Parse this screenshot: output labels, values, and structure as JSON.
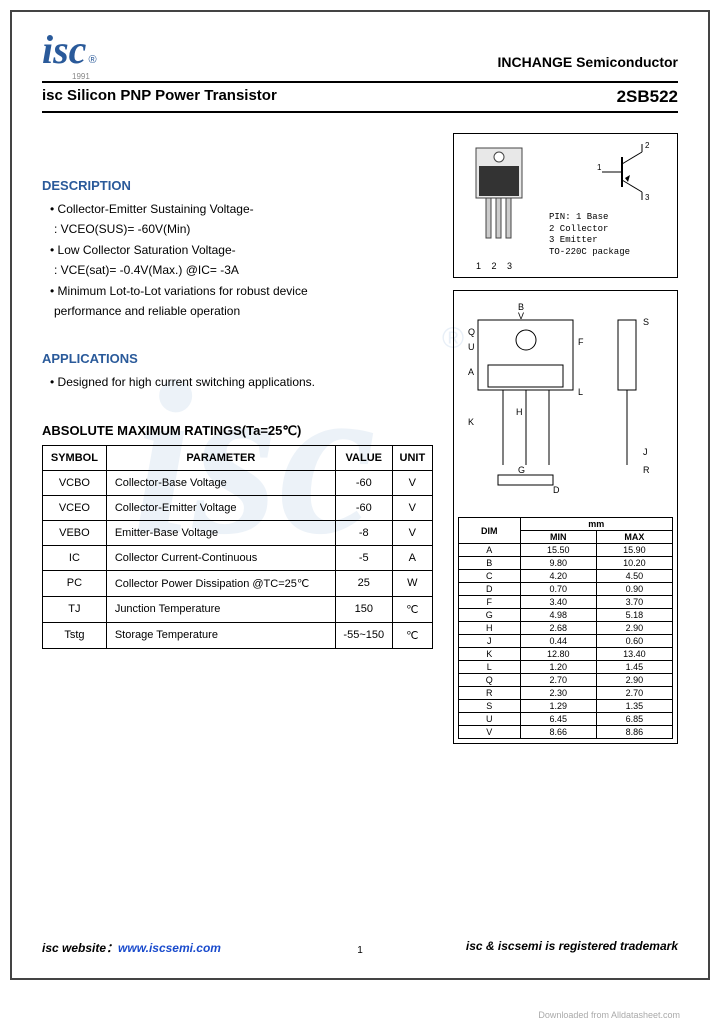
{
  "header": {
    "logo_text": "isc",
    "logo_year": "1991",
    "company": "INCHANGE Semiconductor"
  },
  "title": {
    "left": "isc Silicon PNP Power Transistor",
    "right": "2SB522"
  },
  "description": {
    "heading": "DESCRIPTION",
    "items": [
      "Collector-Emitter Sustaining Voltage-",
      ": VCEO(SUS)= -60V(Min)",
      "Low Collector Saturation Voltage-",
      ": VCE(sat)= -0.4V(Max.) @IC= -3A",
      "Minimum Lot-to-Lot variations for robust device",
      "performance and reliable operation"
    ]
  },
  "applications": {
    "heading": "APPLICATIONS",
    "item": "Designed for high current switching applications."
  },
  "ratings": {
    "heading": "ABSOLUTE MAXIMUM RATINGS(Ta=25℃)",
    "columns": [
      "SYMBOL",
      "PARAMETER",
      "VALUE",
      "UNIT"
    ],
    "rows": [
      [
        "VCBO",
        "Collector-Base Voltage",
        "-60",
        "V"
      ],
      [
        "VCEO",
        "Collector-Emitter Voltage",
        "-60",
        "V"
      ],
      [
        "VEBO",
        "Emitter-Base Voltage",
        "-8",
        "V"
      ],
      [
        "IC",
        "Collector Current-Continuous",
        "-5",
        "A"
      ],
      [
        "PC",
        "Collector Power Dissipation @TC=25℃",
        "25",
        "W"
      ],
      [
        "TJ",
        "Junction Temperature",
        "150",
        "℃"
      ],
      [
        "Tstg",
        "Storage Temperature",
        "-55~150",
        "℃"
      ]
    ]
  },
  "package": {
    "pin_labels": "1 2 3",
    "pin_text": [
      "PIN: 1 Base",
      "     2 Collector",
      "     3 Emitter",
      "  TO-220C package"
    ]
  },
  "dimensions": {
    "mm_label": "mm",
    "columns": [
      "DIM",
      "MIN",
      "MAX"
    ],
    "rows": [
      [
        "A",
        "15.50",
        "15.90"
      ],
      [
        "B",
        "9.80",
        "10.20"
      ],
      [
        "C",
        "4.20",
        "4.50"
      ],
      [
        "D",
        "0.70",
        "0.90"
      ],
      [
        "F",
        "3.40",
        "3.70"
      ],
      [
        "G",
        "4.98",
        "5.18"
      ],
      [
        "H",
        "2.68",
        "2.90"
      ],
      [
        "J",
        "0.44",
        "0.60"
      ],
      [
        "K",
        "12.80",
        "13.40"
      ],
      [
        "L",
        "1.20",
        "1.45"
      ],
      [
        "Q",
        "2.70",
        "2.90"
      ],
      [
        "R",
        "2.30",
        "2.70"
      ],
      [
        "S",
        "1.29",
        "1.35"
      ],
      [
        "U",
        "6.45",
        "6.85"
      ],
      [
        "V",
        "8.66",
        "8.86"
      ]
    ]
  },
  "footer": {
    "website_label": "isc website：",
    "website_url": "www.iscsemi.com",
    "trademark": "isc & iscsemi is registered trademark",
    "page": "1",
    "download": "Downloaded from Alldatasheet.com"
  },
  "colors": {
    "brand": "#2a5a9a",
    "link": "#1a4bcc"
  }
}
